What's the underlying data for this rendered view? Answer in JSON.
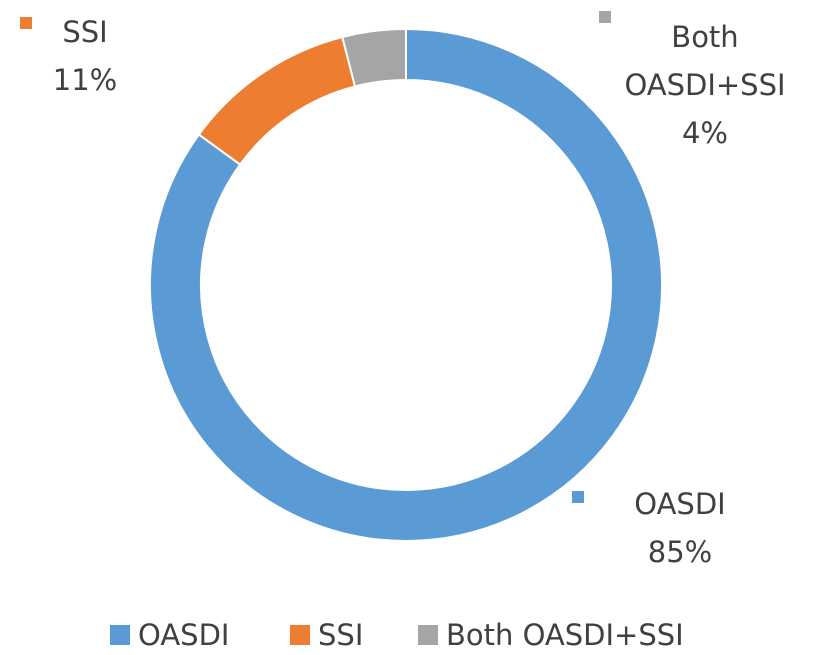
{
  "chart_data": {
    "type": "donut",
    "categories": [
      "OASDI",
      "SSI",
      "Both OASDI+SSI"
    ],
    "values": [
      85,
      11,
      4
    ],
    "value_labels": [
      "85%",
      "11%",
      "4%"
    ],
    "colors": [
      "#5b9bd5",
      "#ed7d31",
      "#a5a5a5"
    ],
    "legend": "bottom"
  }
}
